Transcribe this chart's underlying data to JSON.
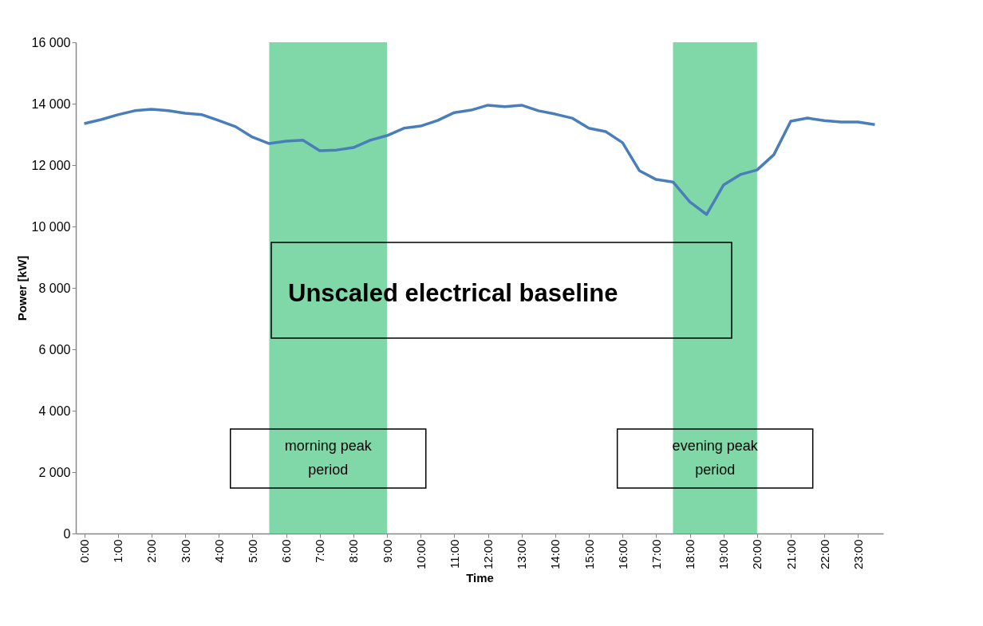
{
  "chart_data": {
    "type": "line",
    "xlabel": "Time",
    "ylabel": "Power [kW]",
    "x": [
      0,
      0.5,
      1,
      1.5,
      2,
      2.5,
      3,
      3.5,
      4,
      4.5,
      5,
      5.5,
      6,
      6.5,
      7,
      7.5,
      8,
      8.5,
      9,
      9.5,
      10,
      10.5,
      11,
      11.5,
      12,
      12.5,
      13,
      13.5,
      14,
      14.5,
      15,
      15.5,
      16,
      16.5,
      17,
      17.5,
      18,
      18.5,
      19,
      19.5,
      20,
      20.5,
      21,
      21.5,
      22,
      22.5,
      23,
      23.5
    ],
    "series": [
      {
        "color": "#4a7ebb",
        "values": [
          13350,
          13480,
          13640,
          13770,
          13820,
          13770,
          13690,
          13640,
          13450,
          13250,
          12910,
          12700,
          12780,
          12810,
          12470,
          12490,
          12570,
          12810,
          12960,
          13200,
          13270,
          13450,
          13710,
          13790,
          13950,
          13900,
          13950,
          13770,
          13660,
          13530,
          13200,
          13090,
          12730,
          11820,
          11530,
          11450,
          10800,
          10390,
          11350,
          11690,
          11840,
          12340,
          13430,
          13530,
          13450,
          13400,
          13400,
          13320
        ]
      }
    ],
    "xlim": [
      -0.25,
      23.75
    ],
    "xticks": [
      {
        "value": 0,
        "label": "0:00"
      },
      {
        "value": 1,
        "label": "1:00"
      },
      {
        "value": 2,
        "label": "2:00"
      },
      {
        "value": 3,
        "label": "3:00"
      },
      {
        "value": 4,
        "label": "4:00"
      },
      {
        "value": 5,
        "label": "5:00"
      },
      {
        "value": 6,
        "label": "6:00"
      },
      {
        "value": 7,
        "label": "7:00"
      },
      {
        "value": 8,
        "label": "8:00"
      },
      {
        "value": 9,
        "label": "9:00"
      },
      {
        "value": 10,
        "label": "10:00"
      },
      {
        "value": 11,
        "label": "11:00"
      },
      {
        "value": 12,
        "label": "12:00"
      },
      {
        "value": 13,
        "label": "13:00"
      },
      {
        "value": 14,
        "label": "14:00"
      },
      {
        "value": 15,
        "label": "15:00"
      },
      {
        "value": 16,
        "label": "16:00"
      },
      {
        "value": 17,
        "label": "17:00"
      },
      {
        "value": 18,
        "label": "18:00"
      },
      {
        "value": 19,
        "label": "19:00"
      },
      {
        "value": 20,
        "label": "20:00"
      },
      {
        "value": 21,
        "label": "21:00"
      },
      {
        "value": 22,
        "label": "22:00"
      },
      {
        "value": 23,
        "label": "23:00"
      }
    ],
    "ylim": [
      0,
      16000
    ],
    "yticks": [
      0,
      {
        "value": 2000,
        "label": "2 000"
      },
      {
        "value": 4000,
        "label": "4 000"
      },
      {
        "value": 6000,
        "label": "6 000"
      },
      {
        "value": 8000,
        "label": "8 000"
      },
      {
        "value": 10000,
        "label": "10 000"
      },
      {
        "value": 12000,
        "label": "12 000"
      },
      {
        "value": 14000,
        "label": "14 000"
      },
      {
        "value": 16000,
        "label": "16 000"
      }
    ],
    "bands": [
      {
        "axis": "x",
        "from": 5.5,
        "to": 9,
        "label": "morning peak period",
        "color": "#80d8a8"
      },
      {
        "axis": "x",
        "from": 17.5,
        "to": 20,
        "label": "evening peak period",
        "color": "#80d8a8"
      }
    ],
    "annotations": [
      "Unscaled electrical baseline"
    ],
    "grid": false,
    "marker": "none",
    "line_style": "solid"
  }
}
